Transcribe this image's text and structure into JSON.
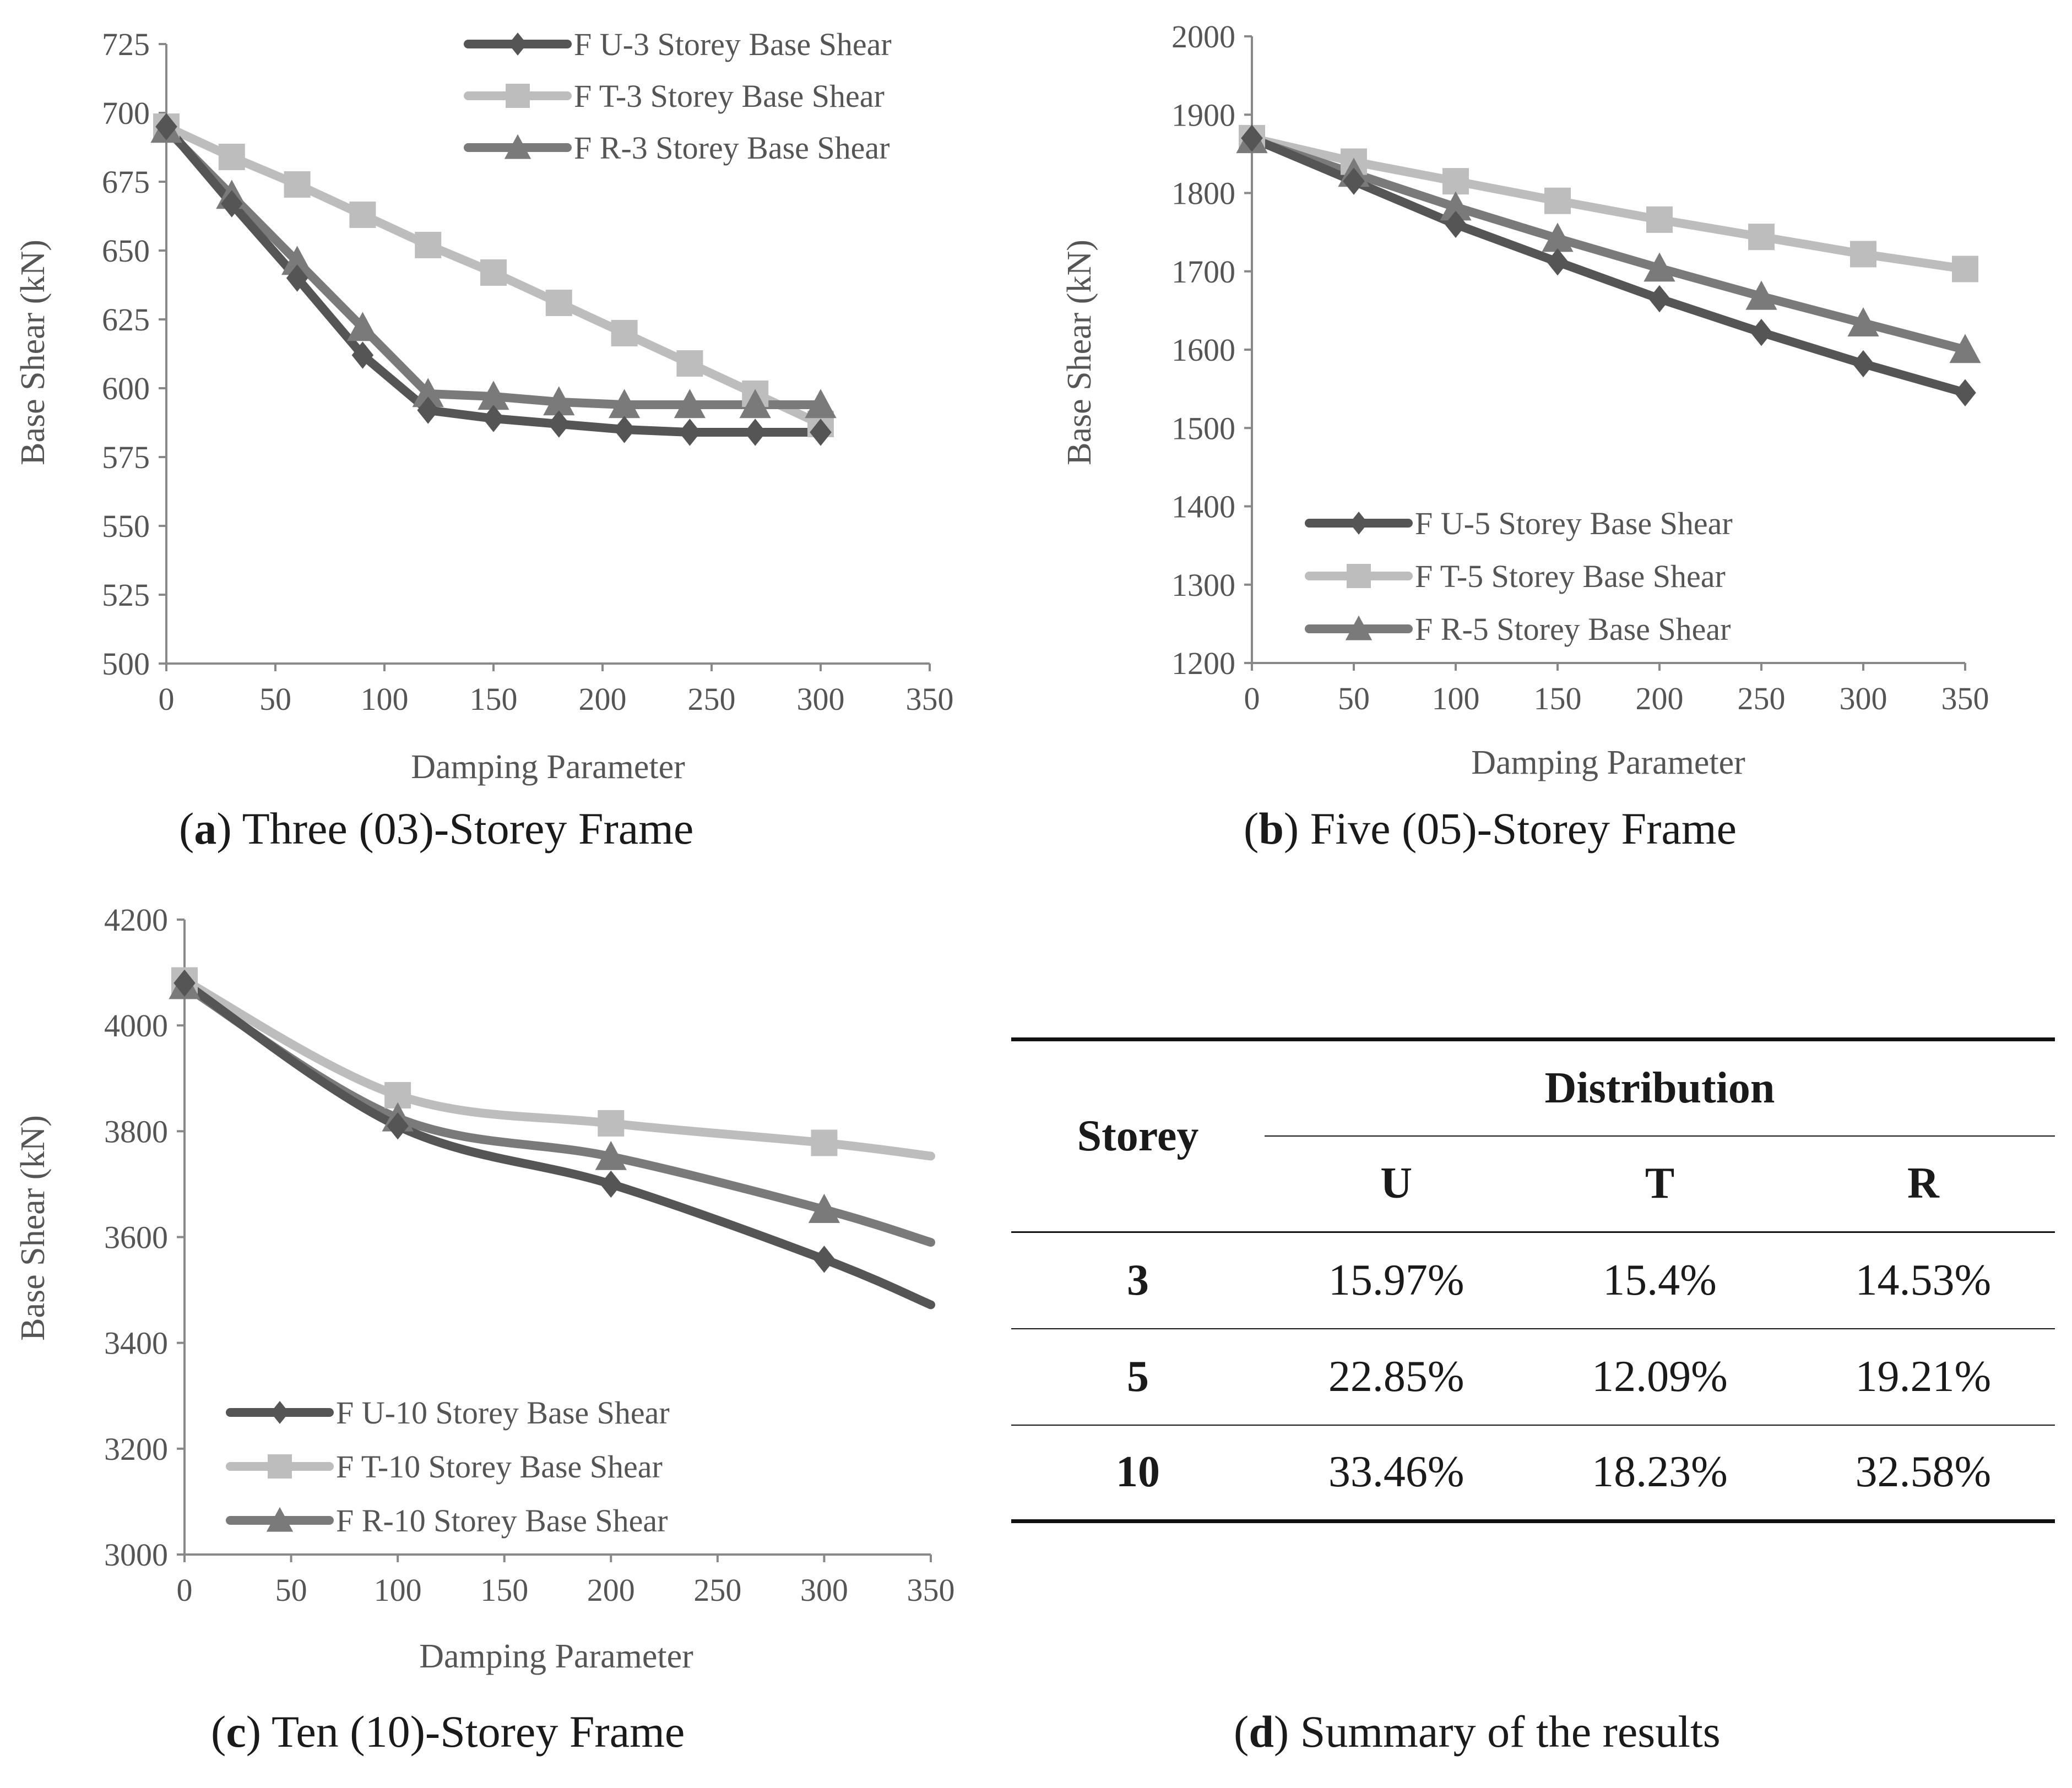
{
  "colors": {
    "U": "#555555",
    "T": "#bdbdbd",
    "R": "#7a7a7a",
    "axis": "#888888",
    "text": "#555555"
  },
  "captions": {
    "a": {
      "letter": "a",
      "text": " Three (03)-Storey Frame"
    },
    "b": {
      "letter": "b",
      "text": " Five (05)-Storey Frame"
    },
    "c": {
      "letter": "c",
      "text": " Ten (10)-Storey Frame"
    },
    "d": {
      "letter": "d",
      "text": " Summary of the results"
    }
  },
  "chart_data": [
    {
      "id": "a",
      "type": "line",
      "xlabel": "Damping Parameter",
      "ylabel": "Base Shear (kN)",
      "xlim": [
        0,
        350
      ],
      "xticks": [
        0,
        50,
        100,
        150,
        200,
        250,
        300,
        350
      ],
      "ylim": [
        500,
        725
      ],
      "yticks": [
        500,
        525,
        550,
        575,
        600,
        625,
        650,
        675,
        700,
        725
      ],
      "legend_position": "top-right",
      "series": [
        {
          "key": "U",
          "name": "F U-3 Storey Base Shear",
          "marker": "diamond",
          "x": [
            0,
            30,
            60,
            90,
            120,
            150,
            180,
            210,
            240,
            270,
            300
          ],
          "y": [
            695,
            667,
            640,
            612,
            592,
            589,
            587,
            585,
            584,
            584,
            584
          ]
        },
        {
          "key": "T",
          "name": "F T-3 Storey Base Shear",
          "marker": "square",
          "x": [
            0,
            30,
            60,
            90,
            120,
            150,
            180,
            210,
            240,
            270,
            300
          ],
          "y": [
            695,
            684,
            674,
            663,
            652,
            642,
            631,
            620,
            609,
            598,
            587
          ]
        },
        {
          "key": "R",
          "name": "F R-3 Storey Base Shear",
          "marker": "triangle",
          "x": [
            0,
            30,
            60,
            90,
            120,
            150,
            180,
            210,
            240,
            270,
            300
          ],
          "y": [
            694,
            670,
            646,
            622,
            598,
            597,
            595,
            594,
            594,
            594,
            594
          ]
        }
      ]
    },
    {
      "id": "b",
      "type": "line",
      "xlabel": "Damping Parameter",
      "ylabel": "Base Shear (kN)",
      "xlim": [
        0,
        350
      ],
      "xticks": [
        0,
        50,
        100,
        150,
        200,
        250,
        300,
        350
      ],
      "ylim": [
        1200,
        2000
      ],
      "yticks": [
        1200,
        1300,
        1400,
        1500,
        1600,
        1700,
        1800,
        1900,
        2000
      ],
      "legend_position": "bottom-left",
      "series": [
        {
          "key": "U",
          "name": "F U-5 Storey Base Shear",
          "marker": "diamond",
          "x": [
            0,
            50,
            100,
            150,
            200,
            250,
            300,
            350
          ],
          "y": [
            1870,
            1815,
            1760,
            1712,
            1665,
            1622,
            1582,
            1545
          ]
        },
        {
          "key": "T",
          "name": "F T-5 Storey Base Shear",
          "marker": "square",
          "x": [
            0,
            50,
            100,
            150,
            200,
            250,
            300,
            350
          ],
          "y": [
            1870,
            1840,
            1815,
            1790,
            1766,
            1744,
            1722,
            1703
          ]
        },
        {
          "key": "R",
          "name": "F R-5 Storey Base Shear",
          "marker": "triangle",
          "x": [
            0,
            50,
            100,
            150,
            200,
            250,
            300,
            350
          ],
          "y": [
            1868,
            1825,
            1782,
            1742,
            1704,
            1668,
            1634,
            1600
          ]
        }
      ]
    },
    {
      "id": "c",
      "type": "line",
      "xlabel": "Damping Parameter",
      "ylabel": "Base Shear (kN)",
      "xlim": [
        0,
        350
      ],
      "xticks": [
        0,
        50,
        100,
        150,
        200,
        250,
        300,
        350
      ],
      "ylim": [
        3000,
        4200
      ],
      "yticks": [
        3000,
        3200,
        3400,
        3600,
        3800,
        4000,
        4200
      ],
      "legend_position": "bottom-left",
      "smooth": true,
      "series": [
        {
          "key": "U",
          "name": "F U-10 Storey Base Shear",
          "marker": "diamond",
          "x": [
            0,
            100,
            200,
            300
          ],
          "y": [
            4080,
            3810,
            3700,
            3558
          ],
          "line_end": {
            "x": 350,
            "y": 3472
          }
        },
        {
          "key": "T",
          "name": "F T-10 Storey Base Shear",
          "marker": "square",
          "x": [
            0,
            100,
            200,
            300
          ],
          "y": [
            4085,
            3868,
            3815,
            3778
          ],
          "line_end": {
            "x": 350,
            "y": 3753
          }
        },
        {
          "key": "R",
          "name": "F R-10 Storey Base Shear",
          "marker": "triangle",
          "x": [
            0,
            100,
            200,
            300
          ],
          "y": [
            4075,
            3825,
            3752,
            3652
          ],
          "line_end": {
            "x": 350,
            "y": 3590
          }
        }
      ]
    }
  ],
  "summary": {
    "storey_header": "Storey",
    "distribution_header": "Distribution",
    "columns": [
      "U",
      "T",
      "R"
    ],
    "rows": [
      {
        "storey": "3",
        "values": [
          "15.97%",
          "15.4%",
          "14.53%"
        ]
      },
      {
        "storey": "5",
        "values": [
          "22.85%",
          "12.09%",
          "19.21%"
        ]
      },
      {
        "storey": "10",
        "values": [
          "33.46%",
          "18.23%",
          "32.58%"
        ]
      }
    ]
  }
}
